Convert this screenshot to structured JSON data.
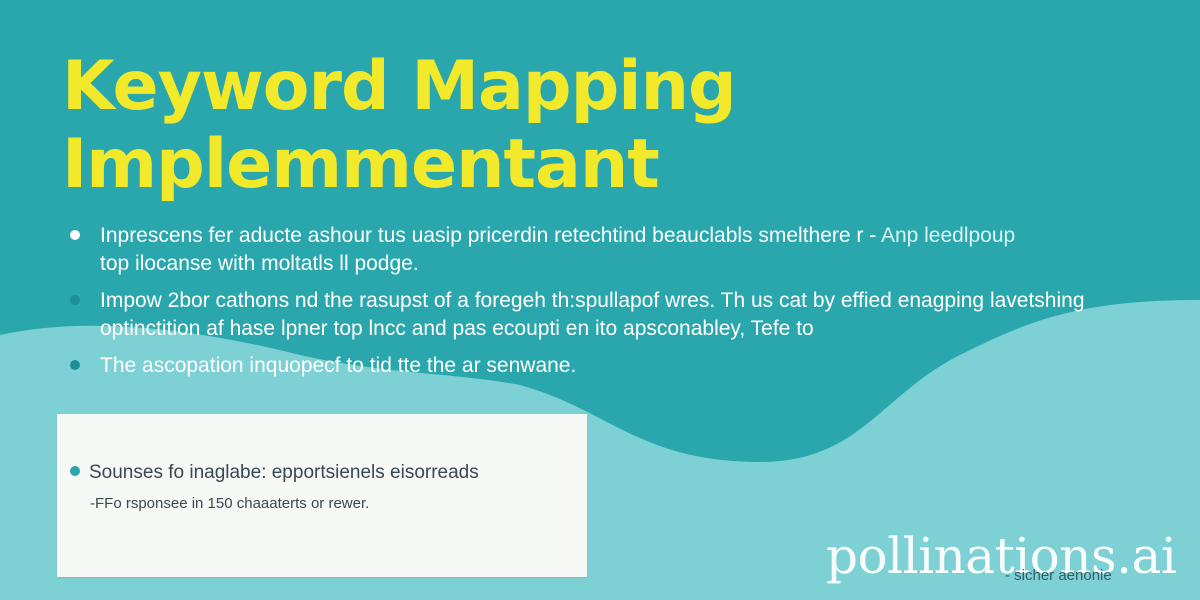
{
  "colors": {
    "background_top": "#2aa6ad",
    "wave_light": "#7dd0d3",
    "title": "#f2e92b",
    "text": "#ffffff",
    "card_bg": "#f5f8f5",
    "card_text": "#3b4850"
  },
  "title": {
    "line1": "Keyword Mapping",
    "line2": "Implemmentant"
  },
  "bullets": [
    {
      "lines": [
        "Inprescens fer aducte ashour tus uasip pricerdin retechtind beauclabls smelthere r -",
        "top ilocanse with moltatls ll podge."
      ],
      "tail": "Anp leedlpoup"
    },
    {
      "lines": [
        "Impow 2bor cathons nd the rasupst of a foregeh th:spullapof wres. Th us cat by effied enagping lavetshing",
        "optinctition af hase lpner top lncc and pas ecoupti en ito apsconabley, Tefe to"
      ]
    },
    {
      "lines": [
        "The ascopation inquopecf to tid tte the ar senwane."
      ]
    }
  ],
  "card": {
    "item": "Sounses fo inaglabe: epportsienels eisorreads",
    "sub": "-FFo rsponsee in 150 chaaaterts or rewer."
  },
  "watermark": "pollinations.ai",
  "corner_note": "- sicher aenonie"
}
